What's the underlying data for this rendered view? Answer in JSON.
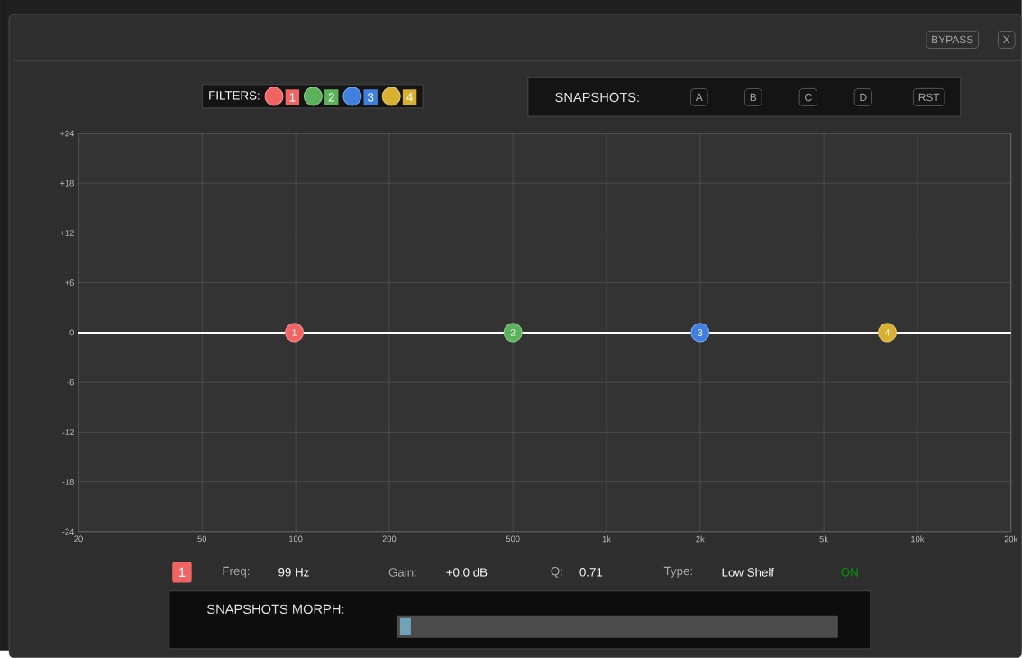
{
  "chart_data": {
    "type": "line",
    "legend_title": "FILTERS:",
    "log": "x",
    "grid": true,
    "legend": "top",
    "xlim": [
      20,
      20000
    ],
    "ylim": [
      -24,
      24
    ],
    "xticks": [
      20,
      50,
      100,
      200,
      500,
      {
        "value": 1000,
        "label": "1k"
      },
      {
        "value": 2000,
        "label": "2k"
      },
      {
        "value": 5000,
        "label": "5k"
      },
      {
        "value": 10000,
        "label": "10k"
      },
      {
        "value": 20000,
        "label": "20k"
      }
    ],
    "yticks": [
      -24,
      -18,
      -12,
      -6,
      0,
      {
        "value": 6,
        "label": "+6"
      },
      {
        "value": 12,
        "label": "+12"
      },
      {
        "value": 18,
        "label": "+18"
      },
      {
        "value": 24,
        "label": "+24"
      }
    ],
    "series": [
      {
        "type": "line",
        "color": "#ffffff",
        "x": [
          20,
          20000
        ],
        "values": [
          0,
          0
        ]
      },
      {
        "name": "1",
        "type": "scatter",
        "marker": "circle",
        "color": "#f06464",
        "x": [
          99
        ],
        "values": [
          0
        ]
      },
      {
        "name": "2",
        "type": "scatter",
        "marker": "circle",
        "color": "#5bb25b",
        "x": [
          500
        ],
        "values": [
          0
        ]
      },
      {
        "name": "3",
        "type": "scatter",
        "marker": "circle",
        "color": "#3f7fe0",
        "x": [
          2000
        ],
        "values": [
          0
        ]
      },
      {
        "name": "4",
        "type": "scatter",
        "marker": "circle",
        "color": "#d8b030",
        "x": [
          8000
        ],
        "values": [
          0
        ]
      }
    ],
    "annotations": [
      "BYPASS",
      "X",
      "SNAPSHOTS:",
      "A",
      "B",
      "C",
      "D",
      "RST",
      "1",
      "Freq:",
      "99 Hz",
      "Gain:",
      "+0.0 dB",
      "Q:",
      "0.71",
      "Type:",
      "Low Shelf",
      "ON",
      "SNAPSHOTS MORPH:",
      {
        "text": "1",
        "x": 99,
        "y": 0
      },
      {
        "text": "2",
        "x": 500,
        "y": 0
      },
      {
        "text": "3",
        "x": 2000,
        "y": 0
      },
      {
        "text": "4",
        "x": 8000,
        "y": 0
      }
    ]
  }
}
